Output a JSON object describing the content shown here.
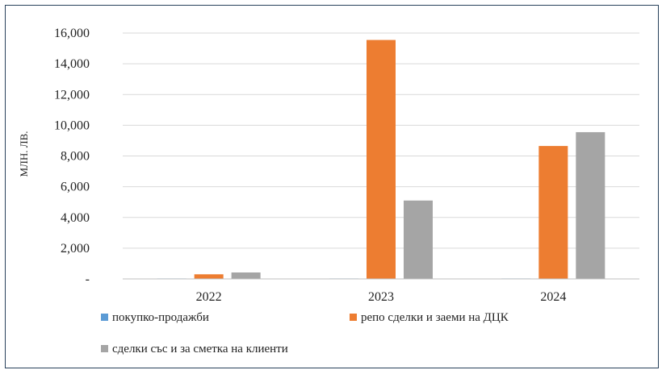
{
  "chart_data": {
    "type": "bar",
    "title": "",
    "xlabel": "",
    "ylabel": "МЛН. ЛВ.",
    "categories": [
      "2022",
      "2023",
      "2024"
    ],
    "series": [
      {
        "name": "покупко-продажби",
        "color": "#5b9bd5",
        "values": [
          30,
          30,
          30
        ]
      },
      {
        "name": "репо сделки и заеми на ДЦК",
        "color": "#ed7d31",
        "values": [
          300,
          15550,
          8650
        ]
      },
      {
        "name": "сделки със и за сметка на клиенти",
        "color": "#a5a5a5",
        "values": [
          420,
          5100,
          9550
        ]
      }
    ],
    "ylim": [
      0,
      16000
    ],
    "yticks": [
      0,
      2000,
      4000,
      6000,
      8000,
      10000,
      12000,
      14000,
      16000
    ],
    "ytick_labels": [
      "-",
      "2,000",
      "4,000",
      "6,000",
      "8,000",
      "10,000",
      "12,000",
      "14,000",
      "16,000"
    ],
    "grid": true,
    "legend_position": "bottom"
  }
}
